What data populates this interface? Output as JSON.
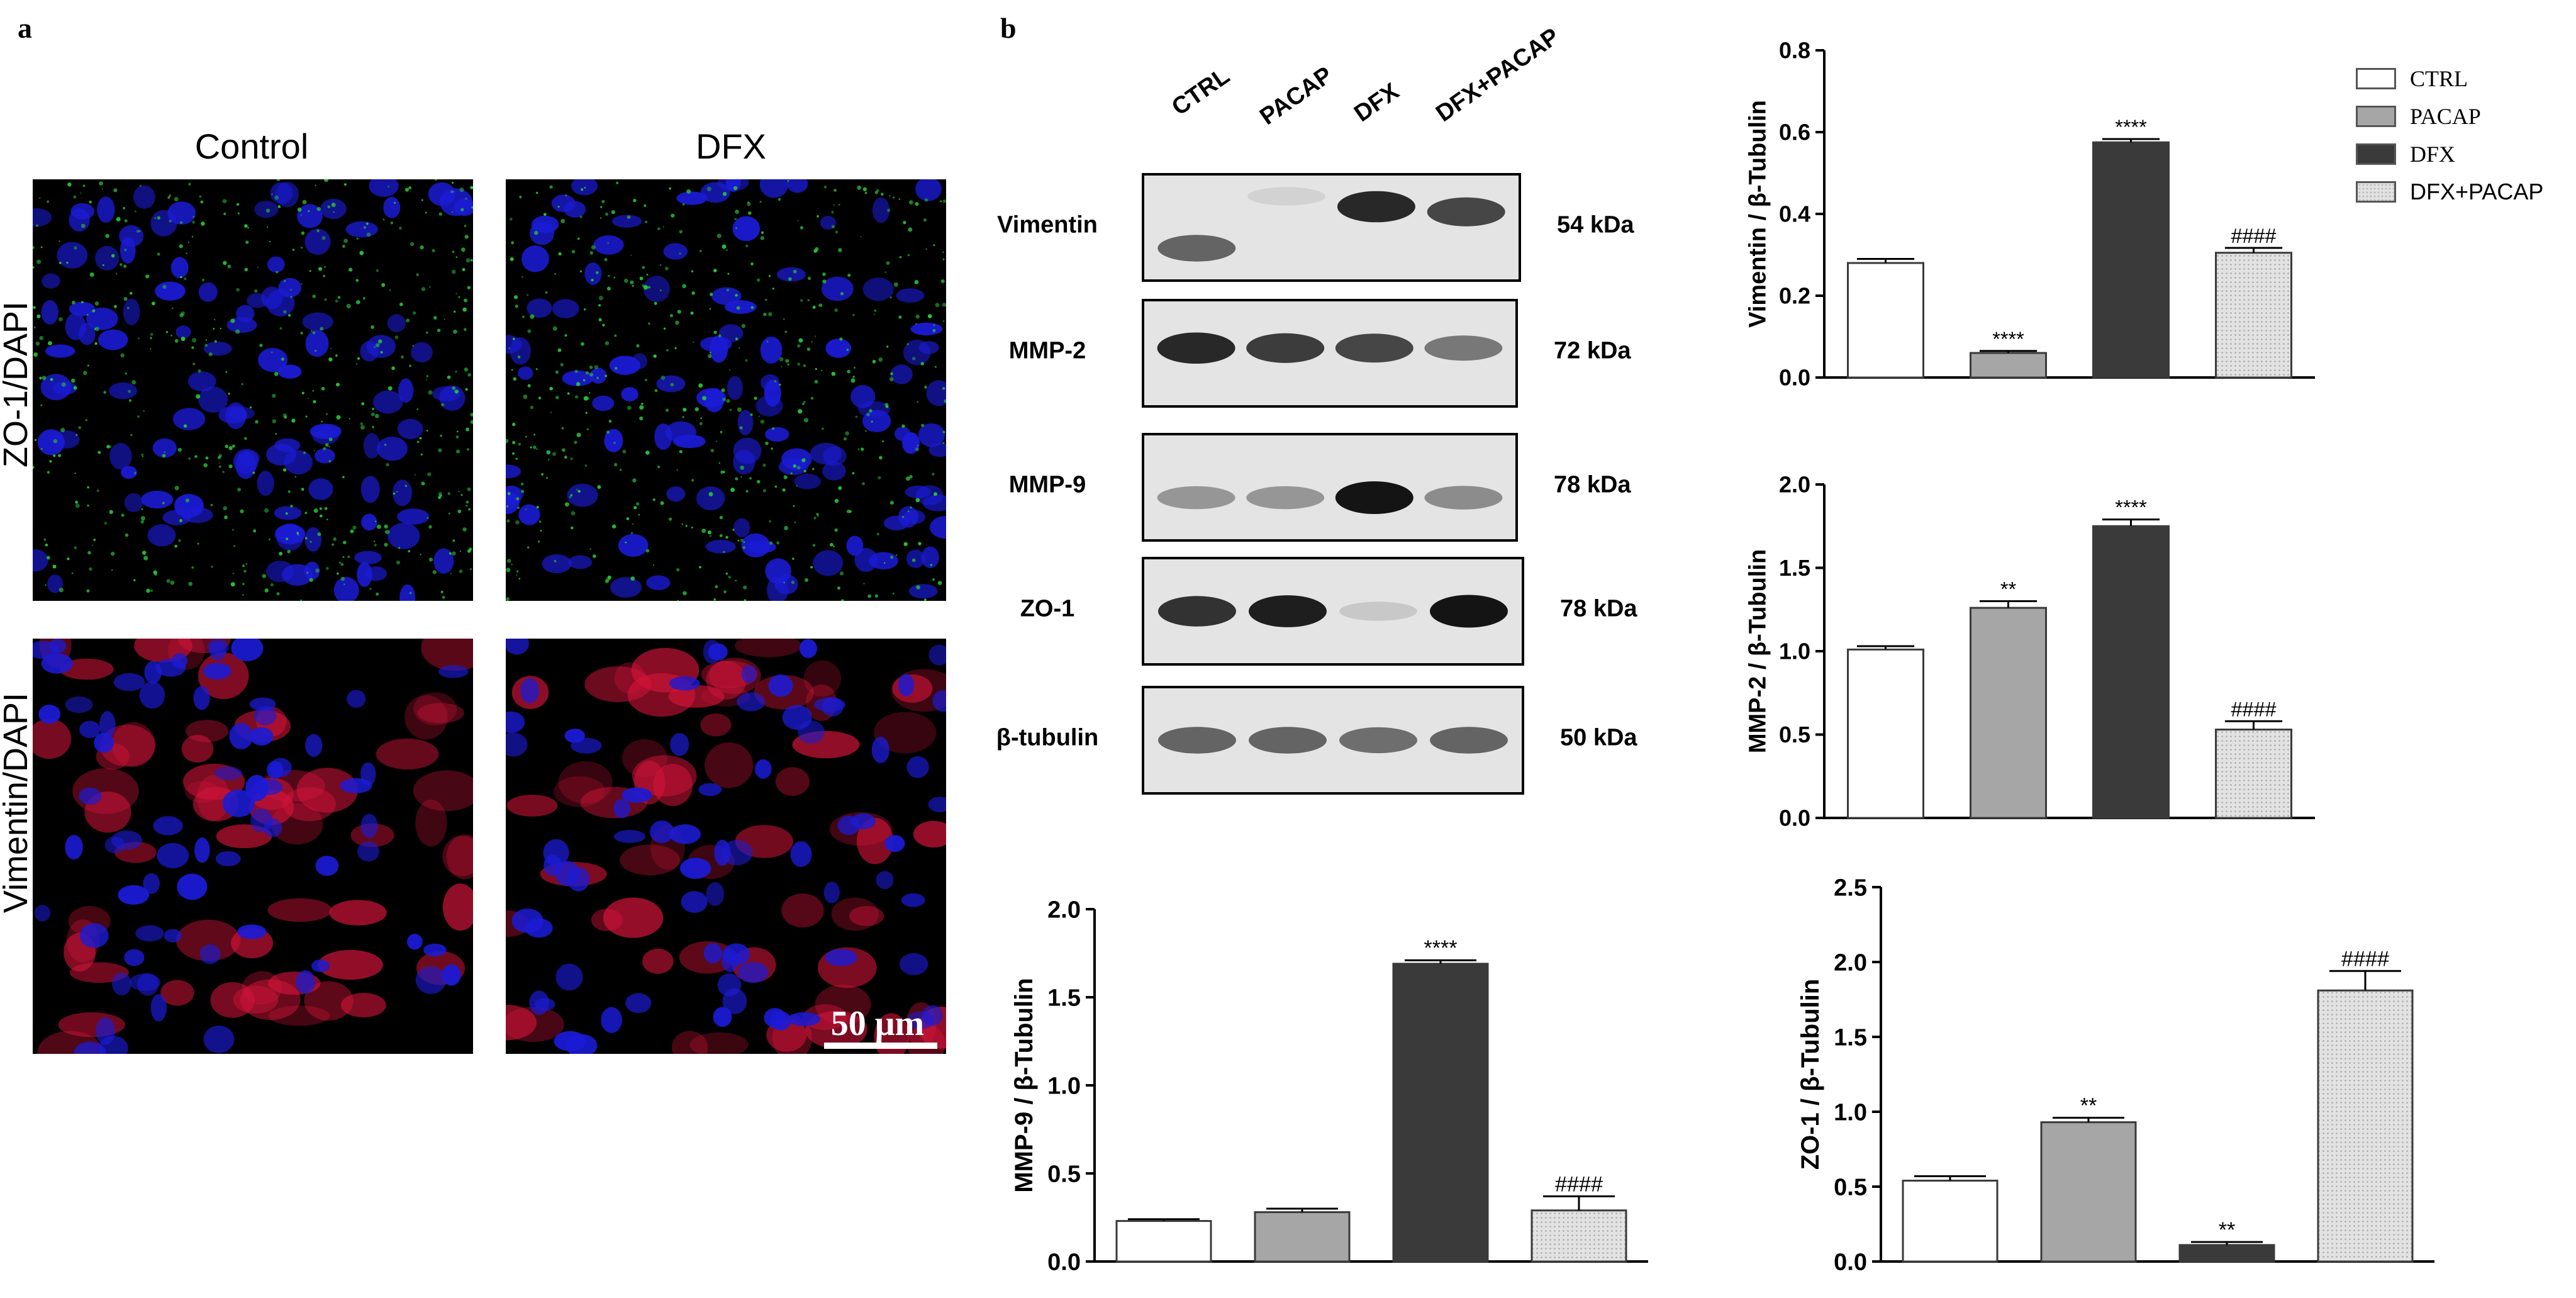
{
  "panel_a": {
    "letter": "a",
    "columns": [
      "Control",
      "DFX"
    ],
    "rows": [
      "ZO-1/DAPI",
      "Vimentin/DAPI"
    ],
    "scale_bar": "50 μm"
  },
  "panel_b": {
    "letter": "b",
    "lanes": [
      "CTRL",
      "PACAP",
      "DFX",
      "DFX+PACAP"
    ],
    "blots": [
      {
        "name": "Vimentin",
        "kda": "54 kDa"
      },
      {
        "name": "MMP-2",
        "kda": "72 kDa"
      },
      {
        "name": "MMP-9",
        "kda": "78 kDa"
      },
      {
        "name": "ZO-1",
        "kda": "78 kDa"
      },
      {
        "name": "β-tubulin",
        "kda": "50 kDa"
      }
    ]
  },
  "legend": {
    "items": [
      {
        "label": "CTRL",
        "color": "#ffffff"
      },
      {
        "label": "PACAP",
        "color": "#a6a6a6"
      },
      {
        "label": "DFX",
        "color": "#3a3a3a"
      },
      {
        "label": "DFX+PACAP",
        "color": "#e2e2e2"
      }
    ]
  },
  "colors": {
    "CTRL": "#ffffff",
    "PACAP": "#a6a6a6",
    "DFX": "#3a3a3a",
    "DFX+PACAP": "#e2e2e2",
    "dapi": "#1b1bd6",
    "zo1": "#27c43a",
    "vimentin": "#d4143a"
  },
  "chart_data": [
    {
      "id": "vimentin",
      "type": "bar",
      "categories": [
        "CTRL",
        "PACAP",
        "DFX",
        "DFX+PACAP"
      ],
      "values": [
        0.28,
        0.06,
        0.575,
        0.305
      ],
      "errors": [
        0.01,
        0.005,
        0.008,
        0.012
      ],
      "annotations": [
        "",
        "****",
        "****",
        "####"
      ],
      "ylabel": "Vimentin / β-Tubulin",
      "ylim": [
        0,
        0.8
      ],
      "yticks": [
        "0.0",
        "0.2",
        "0.4",
        "0.6",
        "0.8"
      ]
    },
    {
      "id": "mmp2",
      "type": "bar",
      "categories": [
        "CTRL",
        "PACAP",
        "DFX",
        "DFX+PACAP"
      ],
      "values": [
        1.01,
        1.26,
        1.75,
        0.53
      ],
      "errors": [
        0.02,
        0.04,
        0.04,
        0.05
      ],
      "annotations": [
        "",
        "**",
        "****",
        "####"
      ],
      "ylabel": "MMP-2 / β-Tubulin",
      "ylim": [
        0,
        2.0
      ],
      "yticks": [
        "0.0",
        "0.5",
        "1.0",
        "1.5",
        "2.0"
      ]
    },
    {
      "id": "mmp9",
      "type": "bar",
      "categories": [
        "CTRL",
        "PACAP",
        "DFX",
        "DFX+PACAP"
      ],
      "values": [
        0.23,
        0.28,
        1.69,
        0.29
      ],
      "errors": [
        0.01,
        0.02,
        0.02,
        0.08
      ],
      "annotations": [
        "",
        "",
        "****",
        "####"
      ],
      "ylabel": "MMP-9 / β-Tubulin",
      "ylim": [
        0,
        2.0
      ],
      "yticks": [
        "0.0",
        "0.5",
        "1.0",
        "1.5",
        "2.0"
      ]
    },
    {
      "id": "zo1",
      "type": "bar",
      "categories": [
        "CTRL",
        "PACAP",
        "DFX",
        "DFX+PACAP"
      ],
      "values": [
        0.54,
        0.93,
        0.11,
        1.81
      ],
      "errors": [
        0.03,
        0.03,
        0.02,
        0.13
      ],
      "annotations": [
        "",
        "**",
        "**",
        "####"
      ],
      "ylabel": "ZO-1 / β-Tubulin",
      "ylim": [
        0,
        2.5
      ],
      "yticks": [
        "0.0",
        "0.5",
        "1.0",
        "1.5",
        "2.0",
        "2.5"
      ]
    }
  ]
}
